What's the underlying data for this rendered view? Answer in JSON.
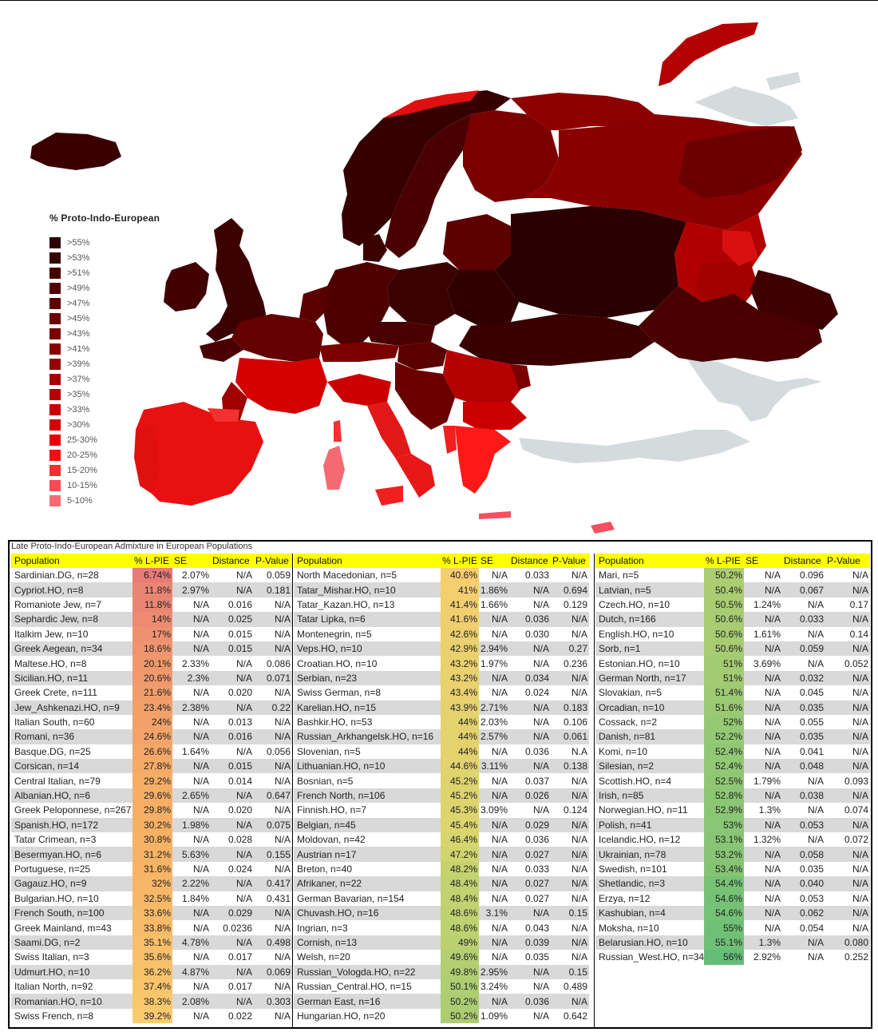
{
  "legend": {
    "title": "% Proto-Indo-European",
    "items": [
      {
        "label": ">55%",
        "color": "#2a0000"
      },
      {
        "label": ">53%",
        "color": "#350000"
      },
      {
        "label": ">51%",
        "color": "#420000"
      },
      {
        "label": ">49%",
        "color": "#500000"
      },
      {
        "label": ">47%",
        "color": "#5e0000"
      },
      {
        "label": ">45%",
        "color": "#6b0000"
      },
      {
        "label": ">43%",
        "color": "#7a0000"
      },
      {
        "label": ">41%",
        "color": "#880000"
      },
      {
        "label": ">39%",
        "color": "#960000"
      },
      {
        "label": ">37%",
        "color": "#a40000"
      },
      {
        "label": ">35%",
        "color": "#b40000"
      },
      {
        "label": ">33%",
        "color": "#c40000"
      },
      {
        "label": ">30%",
        "color": "#d40000"
      },
      {
        "label": "25-30%",
        "color": "#e60000"
      },
      {
        "label": "20-25%",
        "color": "#f01010"
      },
      {
        "label": "15-20%",
        "color": "#f53030"
      },
      {
        "label": "10-15%",
        "color": "#f64a55"
      },
      {
        "label": "5-10%",
        "color": "#f56a72"
      }
    ]
  },
  "table": {
    "caption": "Late Proto-Indo-European Admixture in European Populations",
    "headers": {
      "population": "Population",
      "pct": "% L-PIE",
      "se": "SE",
      "distance": "Distance",
      "pvalue": "P-Value"
    },
    "columns": [
      [
        [
          "Sardinian.DG, n=28",
          "6.74%",
          "2.07%",
          "N/A",
          "0.059"
        ],
        [
          "Cypriot.HO, n=8",
          "11.8%",
          "2.97%",
          "N/A",
          "0.181"
        ],
        [
          "Romaniote Jew, n=7",
          "11.8%",
          "N/A",
          "0.016",
          "N/A"
        ],
        [
          "Sephardic Jew, n=8",
          "14%",
          "N/A",
          "0.025",
          "N/A"
        ],
        [
          "Italkim Jew, n=10",
          "17%",
          "N/A",
          "0.015",
          "N/A"
        ],
        [
          "Greek Aegean, n=34",
          "18.6%",
          "N/A",
          "0.015",
          "N/A"
        ],
        [
          "Maltese.HO, n=8",
          "20.1%",
          "2.33%",
          "N/A",
          "0.086"
        ],
        [
          "Sicilian.HO, n=11",
          "20.6%",
          "2.3%",
          "N/A",
          "0.071"
        ],
        [
          "Greek Crete, n=111",
          "21.6%",
          "N/A",
          "0.020",
          "N/A"
        ],
        [
          "Jew_Ashkenazi.HO, n=9",
          "23.4%",
          "2.38%",
          "N/A",
          "0.22"
        ],
        [
          "Italian South, n=60",
          "24%",
          "N/A",
          "0.013",
          "N/A"
        ],
        [
          "Romani, n=36",
          "24.6%",
          "N/A",
          "0.016",
          "N/A"
        ],
        [
          "Basque.DG, n=25",
          "26.6%",
          "1.64%",
          "N/A",
          "0.056"
        ],
        [
          "Corsican, n=14",
          "27.8%",
          "N/A",
          "0.015",
          "N/A"
        ],
        [
          "Central Italian, n=79",
          "29.2%",
          "N/A",
          "0.014",
          "N/A"
        ],
        [
          "Albanian.HO, n=6",
          "29.6%",
          "2.65%",
          "N/A",
          "0.647"
        ],
        [
          "Greek Peloponnese, n=267",
          "29.8%",
          "N/A",
          "0.020",
          "N/A"
        ],
        [
          "Spanish.HO, n=172",
          "30.2%",
          "1.98%",
          "N/A",
          "0.075"
        ],
        [
          "Tatar Crimean, n=3",
          "30.8%",
          "N/A",
          "0.028",
          "N/A"
        ],
        [
          "Besermyan.HO, n=6",
          "31.2%",
          "5.63%",
          "N/A",
          "0.155"
        ],
        [
          "Portuguese, n=25",
          "31.6%",
          "N/A",
          "0.024",
          "N/A"
        ],
        [
          "Gagauz.HO, n=9",
          "32%",
          "2.22%",
          "N/A",
          "0.417"
        ],
        [
          "Bulgarian.HO, n=10",
          "32.5%",
          "1.84%",
          "N/A",
          "0.431"
        ],
        [
          "French South, n=100",
          "33.6%",
          "N/A",
          "0.029",
          "N/A"
        ],
        [
          "Greek Mainland, m=43",
          "33.8%",
          "N/A",
          "0.0236",
          "N/A"
        ],
        [
          "Saami.DG, n=2",
          "35.1%",
          "4.78%",
          "N/A",
          "0.498"
        ],
        [
          "Swiss Italian, n=3",
          "35.6%",
          "N/A",
          "0.017",
          "N/A"
        ],
        [
          "Udmurt.HO, n=10",
          "36.2%",
          "4.87%",
          "N/A",
          "0.069"
        ],
        [
          "Italian North, n=92",
          "37.4%",
          "N/A",
          "0.017",
          "N/A"
        ],
        [
          "Romanian.HO, n=10",
          "38.3%",
          "2.08%",
          "N/A",
          "0.303"
        ],
        [
          "Swiss French, n=8",
          "39.2%",
          "N/A",
          "0.022",
          "N/A"
        ]
      ],
      [
        [
          "North Macedonian, n=5",
          "40.6%",
          "N/A",
          "0.033",
          "N/A"
        ],
        [
          "Tatar_Mishar.HO, n=10",
          "41%",
          "1.86%",
          "N/A",
          "0.694"
        ],
        [
          "Tatar_Kazan.HO, n=13",
          "41.4%",
          "1.66%",
          "N/A",
          "0.129"
        ],
        [
          "Tatar Lipka, n=6",
          "41.6%",
          "N/A",
          "0.036",
          "N/A"
        ],
        [
          "Montenegrin, n=5",
          "42.6%",
          "N/A",
          "0.030",
          "N/A"
        ],
        [
          "Veps.HO, n=10",
          "42.9%",
          "2.94%",
          "N/A",
          "0.27"
        ],
        [
          "Croatian.HO, n=10",
          "43.2%",
          "1.97%",
          "N/A",
          "0.236"
        ],
        [
          "Serbian, n=23",
          "43.2%",
          "N/A",
          "0.034",
          "N/A"
        ],
        [
          "Swiss German, n=8",
          "43.4%",
          "N/A",
          "0.024",
          "N/A"
        ],
        [
          "Karelian.HO, n=15",
          "43.9%",
          "2.71%",
          "N/A",
          "0.183"
        ],
        [
          "Bashkir.HO, n=53",
          "44%",
          "2.03%",
          "N/A",
          "0.106"
        ],
        [
          "Russian_Arkhangelsk.HO, n=16",
          "44%",
          "2.57%",
          "N/A",
          "0.061"
        ],
        [
          "Slovenian, n=5",
          "44%",
          "N/A",
          "0.036",
          "N.A"
        ],
        [
          "Lithuanian.HO, n=10",
          "44.6%",
          "3.11%",
          "N/A",
          "0.138"
        ],
        [
          "Bosnian, n=5",
          "45.2%",
          "N/A",
          "0.037",
          "N/A"
        ],
        [
          "French North, n=106",
          "45.2%",
          "N/A",
          "0.026",
          "N/A"
        ],
        [
          "Finnish.HO, n=7",
          "45.3%",
          "3.09%",
          "N/A",
          "0.124"
        ],
        [
          "Belgian, n=45",
          "45.4%",
          "N/A",
          "0.029",
          "N/A"
        ],
        [
          "Moldovan, n=42",
          "46.4%",
          "N/A",
          "0.036",
          "N/A"
        ],
        [
          "Austrian n=17",
          "47.2%",
          "N/A",
          "0.027",
          "N/A"
        ],
        [
          "Breton, n=40",
          "48.2%",
          "N/A",
          "0.033",
          "N/A"
        ],
        [
          "Afrikaner, n=22",
          "48.4%",
          "N/A",
          "0.027",
          "N/A"
        ],
        [
          "German Bavarian, n=154",
          "48.4%",
          "N/A",
          "0.027",
          "N/A"
        ],
        [
          "Chuvash.HO, n=16",
          "48.6%",
          "3.1%",
          "N/A",
          "0.15"
        ],
        [
          "Ingrian, n=3",
          "48.6%",
          "N/A",
          "0.043",
          "N/A"
        ],
        [
          "Cornish, n=13",
          "49%",
          "N/A",
          "0.039",
          "N/A"
        ],
        [
          "Welsh, n=20",
          "49.6%",
          "N/A",
          "0.035",
          "N/A"
        ],
        [
          "Russian_Vologda.HO, n=22",
          "49.8%",
          "2.95%",
          "N/A",
          "0.15"
        ],
        [
          "Russian_Central.HO, n=15",
          "50.1%",
          "3.24%",
          "N/A",
          "0.489"
        ],
        [
          "German East, n=16",
          "50.2%",
          "N/A",
          "0.036",
          "N/A"
        ],
        [
          "Hungarian.HO, n=20",
          "50.2%",
          "1.09%",
          "N/A",
          "0.642"
        ]
      ],
      [
        [
          "Mari, n=5",
          "50.2%",
          "N/A",
          "0.096",
          "N/A"
        ],
        [
          "Latvian, n=5",
          "50.4%",
          "N/A",
          "0.067",
          "N/A"
        ],
        [
          "Czech.HO, n=10",
          "50.5%",
          "1.24%",
          "N/A",
          "0.17"
        ],
        [
          "Dutch, n=166",
          "50.6%",
          "N/A",
          "0.033",
          "N/A"
        ],
        [
          "English.HO, n=10",
          "50.6%",
          "1.61%",
          "N/A",
          "0.14"
        ],
        [
          "Sorb, n=1",
          "50.6%",
          "N/A",
          "0.059",
          "N/A"
        ],
        [
          "Estonian.HO, n=10",
          "51%",
          "3.69%",
          "N/A",
          "0.052"
        ],
        [
          "German North, n=17",
          "51%",
          "N/A",
          "0.032",
          "N/A"
        ],
        [
          "Slovakian, n=5",
          "51.4%",
          "N/A",
          "0.045",
          "N/A"
        ],
        [
          "Orcadian, n=10",
          "51.6%",
          "N/A",
          "0.035",
          "N/A"
        ],
        [
          "Cossack, n=2",
          "52%",
          "N/A",
          "0.055",
          "N/A"
        ],
        [
          "Danish, n=81",
          "52.2%",
          "N/A",
          "0.035",
          "N/A"
        ],
        [
          "Komi, n=10",
          "52.4%",
          "N/A",
          "0.041",
          "N/A"
        ],
        [
          "Silesian, n=2",
          "52.4%",
          "N/A",
          "0.048",
          "N/A"
        ],
        [
          "Scottish.HO, n=4",
          "52.5%",
          "1.79%",
          "N/A",
          "0.093"
        ],
        [
          "Irish, n=85",
          "52.8%",
          "N/A",
          "0.038",
          "N/A"
        ],
        [
          "Norwegian.HO, n=11",
          "52.9%",
          "1.3%",
          "N/A",
          "0.074"
        ],
        [
          "Polish, n=41",
          "53%",
          "N/A",
          "0.053",
          "N/A"
        ],
        [
          "Icelandic.HO, n=12",
          "53.1%",
          "1.32%",
          "N/A",
          "0.072"
        ],
        [
          "Ukrainian, n=78",
          "53.2%",
          "N/A",
          "0.058",
          "N/A"
        ],
        [
          "Swedish, n=101",
          "53.4%",
          "N/A",
          "0.035",
          "N/A"
        ],
        [
          "Shetlandic, n=3",
          "54.4%",
          "N/A",
          "0.040",
          "N/A"
        ],
        [
          "Erzya, n=12",
          "54.6%",
          "N/A",
          "0.053",
          "N/A"
        ],
        [
          "Kashubian, n=4",
          "54.6%",
          "N/A",
          "0.062",
          "N/A"
        ],
        [
          "Moksha, n=10",
          "55%",
          "N/A",
          "0.054",
          "N/A"
        ],
        [
          "Belarusian.HO, n=10",
          "55.1%",
          "1.3%",
          "N/A",
          "0.080"
        ],
        [
          "Russian_West.HO, n=34",
          "56%",
          "2.92%",
          "N/A",
          "0.252"
        ]
      ]
    ]
  }
}
